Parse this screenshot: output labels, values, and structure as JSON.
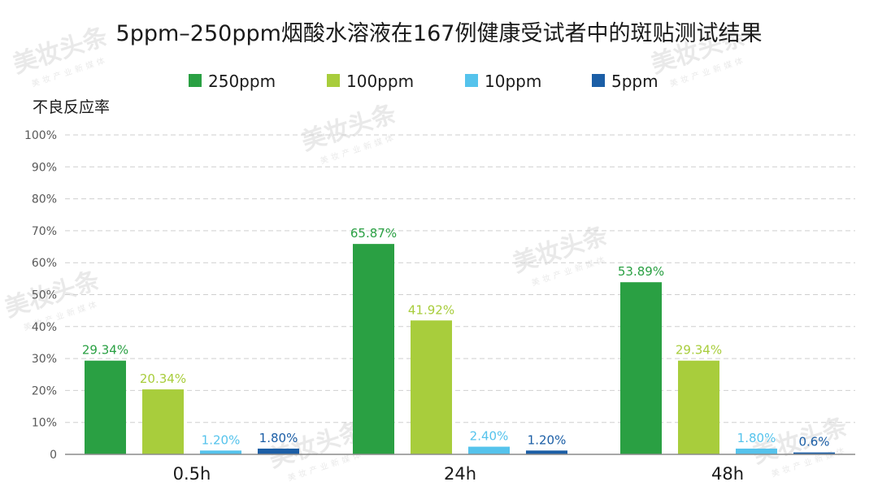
{
  "chart_data": {
    "type": "bar",
    "title": "5ppm–250ppm烟酸水溶液在167例健康受试者中的斑贴测试结果",
    "ylabel": "不良反应率",
    "xlabel": "",
    "ylim": [
      0,
      100
    ],
    "yticks": [
      "0",
      "10%",
      "20%",
      "30%",
      "40%",
      "50%",
      "60%",
      "70%",
      "80%",
      "90%",
      "100%"
    ],
    "categories": [
      "0.5h",
      "24h",
      "48h"
    ],
    "legend_position": "top",
    "grid": true,
    "series": [
      {
        "name": "250ppm",
        "color": "#2aa043",
        "values": [
          29.34,
          65.87,
          53.89
        ],
        "labels": [
          "29.34%",
          "65.87%",
          "53.89%"
        ]
      },
      {
        "name": "100ppm",
        "color": "#a8cd3c",
        "values": [
          20.34,
          41.92,
          29.34
        ],
        "labels": [
          "20.34%",
          "41.92%",
          "29.34%"
        ]
      },
      {
        "name": "10ppm",
        "color": "#55c3ec",
        "values": [
          1.2,
          2.4,
          1.8
        ],
        "labels": [
          "1.20%",
          "2.40%",
          "1.80%"
        ]
      },
      {
        "name": "5ppm",
        "color": "#1b5ea6",
        "values": [
          1.8,
          1.2,
          0.6
        ],
        "labels": [
          "1.80%",
          "1.20%",
          "0.6%"
        ]
      }
    ]
  },
  "watermark": {
    "text": "美妆头条",
    "subtext": "美妆产业新媒体"
  }
}
